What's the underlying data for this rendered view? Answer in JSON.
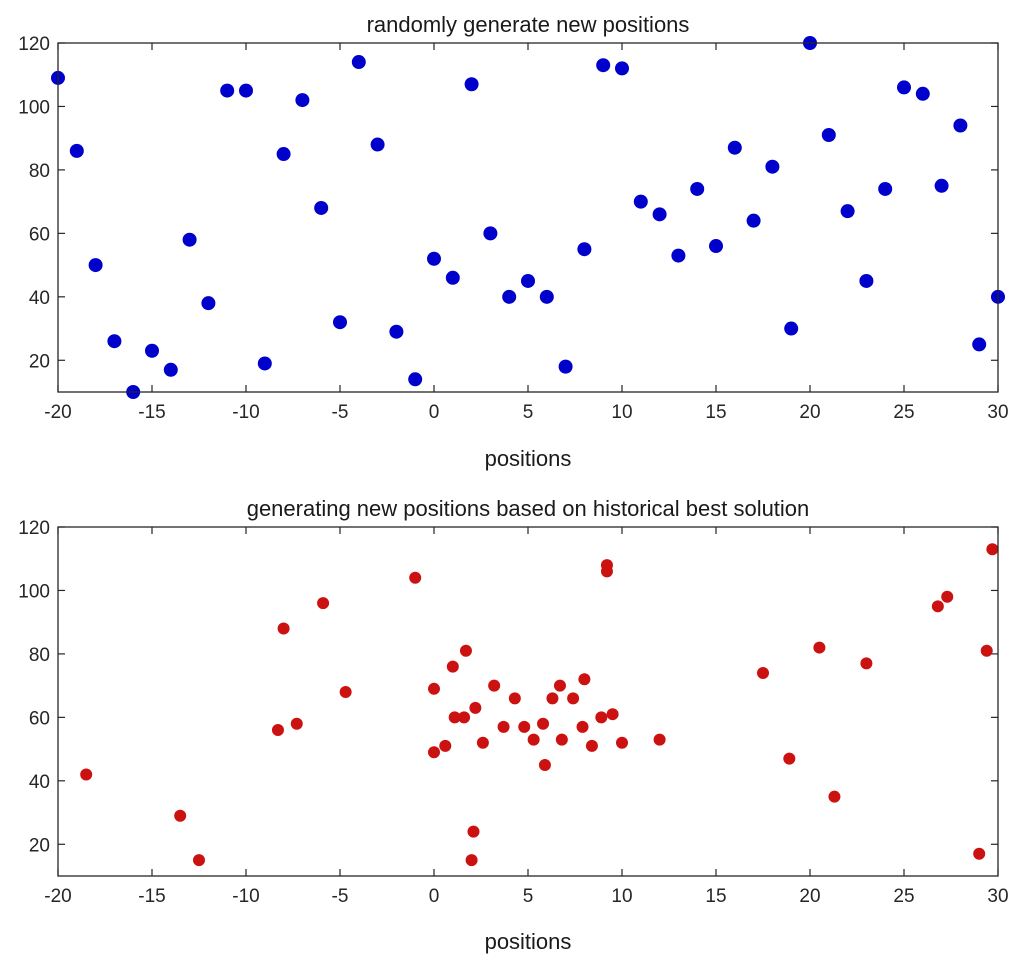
{
  "chart_data": [
    {
      "type": "scatter",
      "title": "randomly generate new positions",
      "xlabel": "positions",
      "ylabel": "",
      "xlim": [
        -20,
        30
      ],
      "ylim": [
        10,
        120
      ],
      "xticks": [
        -20,
        -15,
        -10,
        -5,
        0,
        5,
        10,
        15,
        20,
        25,
        30
      ],
      "yticks": [
        20,
        40,
        60,
        80,
        100,
        120
      ],
      "grid": false,
      "color": "#0000cc",
      "x": [
        -20,
        -19,
        -18,
        -17,
        -16,
        -15,
        -14,
        -13,
        -12,
        -11,
        -10,
        -9,
        -8,
        -7,
        -6,
        -5,
        -4,
        -3,
        -2,
        -1,
        0,
        1,
        2,
        3,
        4,
        5,
        6,
        7,
        8,
        9,
        10,
        11,
        12,
        13,
        14,
        15,
        16,
        17,
        18,
        19,
        20,
        21,
        22,
        23,
        24,
        25,
        26,
        27,
        28,
        29,
        30
      ],
      "y": [
        109,
        86,
        50,
        26,
        10,
        23,
        17,
        58,
        38,
        105,
        105,
        19,
        85,
        102,
        68,
        32,
        114,
        88,
        29,
        14,
        52,
        46,
        107,
        60,
        40,
        45,
        40,
        18,
        55,
        113,
        112,
        70,
        66,
        53,
        74,
        56,
        87,
        64,
        81,
        30,
        120,
        91,
        67,
        45,
        74,
        106,
        104,
        75,
        94,
        25,
        40
      ]
    },
    {
      "type": "scatter",
      "title": "generating new positions based on historical best solution",
      "xlabel": "positions",
      "ylabel": "",
      "xlim": [
        -20,
        30
      ],
      "ylim": [
        10,
        120
      ],
      "xticks": [
        -20,
        -15,
        -10,
        -5,
        0,
        5,
        10,
        15,
        20,
        25,
        30
      ],
      "yticks": [
        20,
        40,
        60,
        80,
        100,
        120
      ],
      "grid": false,
      "color": "#cc1111",
      "x": [
        -18.5,
        -13.5,
        -12.5,
        -8.3,
        -8,
        -7.3,
        -5.9,
        -4.7,
        -1,
        0,
        0,
        0.6,
        1,
        1.1,
        1.6,
        1.7,
        2.2,
        2.1,
        2,
        2.6,
        3.2,
        3.7,
        4.3,
        4.8,
        5.3,
        5.8,
        5.9,
        6.3,
        6.7,
        6.8,
        7.4,
        7.9,
        8,
        8.4,
        8.9,
        9.2,
        9.2,
        9.5,
        10,
        12,
        17.5,
        18.9,
        20.5,
        21.3,
        23,
        26.8,
        27.3,
        29,
        29.4,
        29.7
      ],
      "y": [
        42,
        29,
        15,
        56,
        88,
        58,
        96,
        68,
        104,
        49,
        69,
        51,
        76,
        60,
        60,
        81,
        63,
        24,
        15,
        52,
        70,
        57,
        66,
        57,
        53,
        58,
        45,
        66,
        70,
        53,
        66,
        57,
        72,
        51,
        60,
        108,
        106,
        61,
        52,
        53,
        74,
        47,
        82,
        35,
        77,
        95,
        98,
        17,
        81,
        113
      ]
    }
  ]
}
